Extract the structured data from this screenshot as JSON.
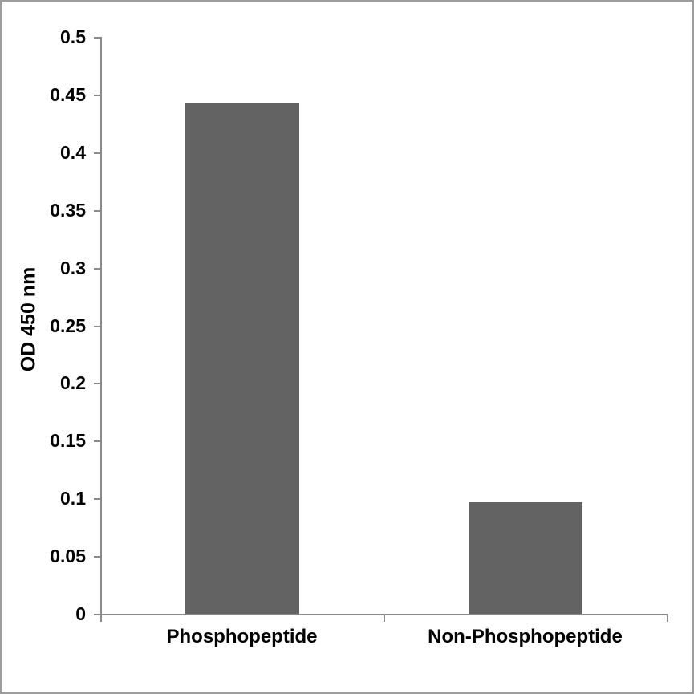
{
  "chart_data": {
    "type": "bar",
    "title": "",
    "xlabel": "",
    "ylabel": "OD 450 nm",
    "categories": [
      "Phosphopeptide",
      "Non-Phosphopeptide"
    ],
    "values": [
      0.443,
      0.097
    ],
    "ylim": [
      0,
      0.5
    ],
    "ytick_step": 0.05,
    "ytick_labels": [
      "0",
      "0.05",
      "0.1",
      "0.15",
      "0.2",
      "0.25",
      "0.3",
      "0.35",
      "0.4",
      "0.45",
      "0.5"
    ],
    "grid": false,
    "legend": null,
    "colors": {
      "bar_fill": "#636363",
      "axis_line": "#8a8a8a",
      "text": "#000000",
      "background": "#ffffff",
      "frame_border": "#9d9d9d"
    }
  }
}
